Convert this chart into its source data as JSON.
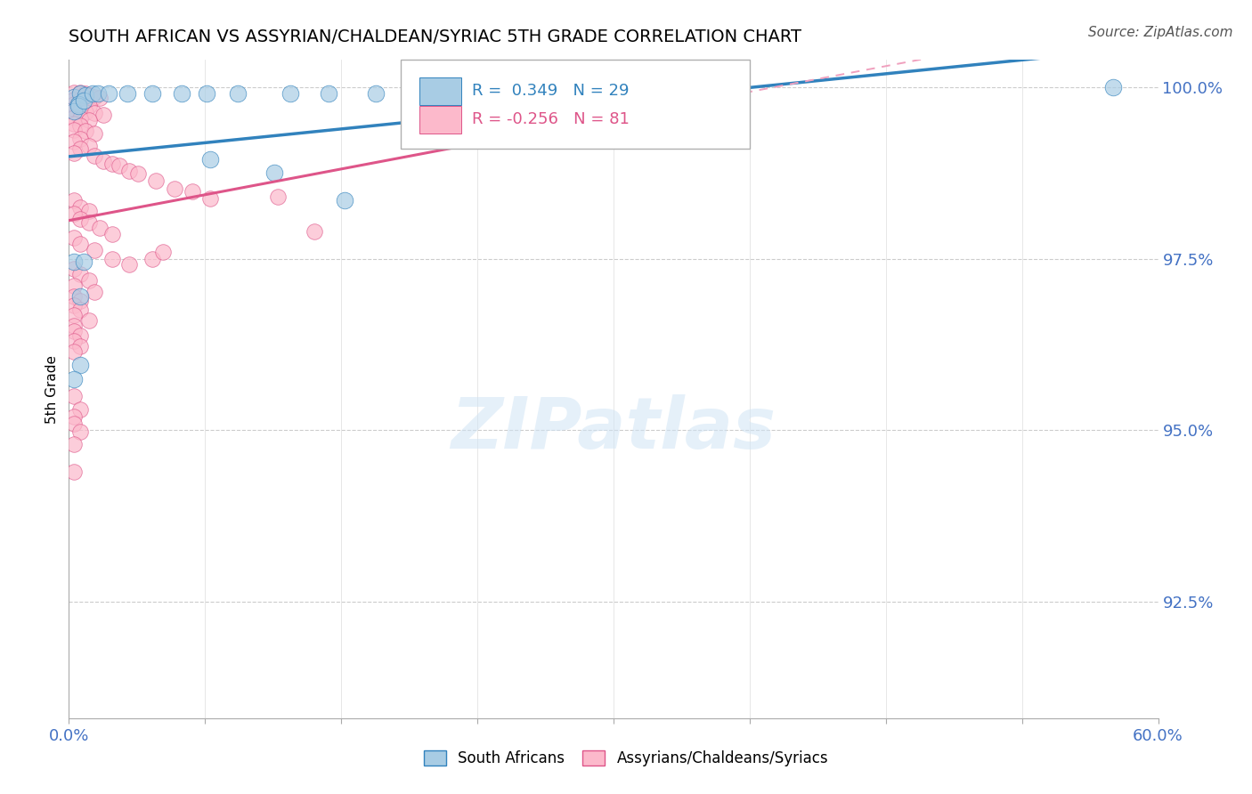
{
  "title": "SOUTH AFRICAN VS ASSYRIAN/CHALDEAN/SYRIAC 5TH GRADE CORRELATION CHART",
  "source": "Source: ZipAtlas.com",
  "ylabel": "5th Grade",
  "ytick_labels": [
    "100.0%",
    "97.5%",
    "95.0%",
    "92.5%"
  ],
  "ytick_values": [
    1.0,
    0.975,
    0.95,
    0.925
  ],
  "xlim": [
    0.0,
    0.6
  ],
  "ylim": [
    0.908,
    1.004
  ],
  "blue_R": "0.349",
  "blue_N": "29",
  "pink_R": "-0.256",
  "pink_N": "81",
  "legend_blue": "South Africans",
  "legend_pink": "Assyrians/Chaldeans/Syriacs",
  "blue_fill": "#a8cce4",
  "blue_edge": "#3182bd",
  "pink_fill": "#fcb9cb",
  "pink_edge": "#de5589",
  "blue_line_color": "#3182bd",
  "pink_line_solid_color": "#de5589",
  "pink_line_dash_color": "#f0a0be",
  "watermark_text": "ZIPatlas",
  "watermark_color": "#d0e4f5",
  "grid_h_color": "#cccccc",
  "grid_v_color": "#dddddd",
  "blue_scatter_x": [
    0.003,
    0.006,
    0.009,
    0.005,
    0.003,
    0.005,
    0.008,
    0.013,
    0.016,
    0.022,
    0.032,
    0.046,
    0.062,
    0.076,
    0.093,
    0.122,
    0.143,
    0.169,
    0.208,
    0.078,
    0.113,
    0.152,
    0.003,
    0.006,
    0.003,
    0.008,
    0.006,
    0.34,
    0.575
  ],
  "blue_scatter_y": [
    0.9985,
    0.999,
    0.9988,
    0.9975,
    0.9965,
    0.9972,
    0.998,
    0.999,
    0.999,
    0.999,
    0.999,
    0.999,
    0.999,
    0.999,
    0.999,
    0.999,
    0.999,
    0.999,
    0.999,
    0.9895,
    0.9875,
    0.9835,
    0.9745,
    0.9595,
    0.9575,
    0.9745,
    0.9695,
    0.999,
    1.0
  ],
  "pink_scatter_x": [
    0.003,
    0.006,
    0.009,
    0.011,
    0.014,
    0.017,
    0.003,
    0.006,
    0.009,
    0.003,
    0.006,
    0.011,
    0.003,
    0.006,
    0.009,
    0.014,
    0.019,
    0.003,
    0.006,
    0.011,
    0.003,
    0.006,
    0.003,
    0.009,
    0.014,
    0.006,
    0.003,
    0.011,
    0.006,
    0.003,
    0.014,
    0.019,
    0.024,
    0.028,
    0.033,
    0.038,
    0.048,
    0.058,
    0.068,
    0.078,
    0.003,
    0.006,
    0.011,
    0.003,
    0.006,
    0.011,
    0.017,
    0.024,
    0.003,
    0.006,
    0.014,
    0.024,
    0.033,
    0.003,
    0.006,
    0.011,
    0.003,
    0.014,
    0.003,
    0.006,
    0.003,
    0.006,
    0.003,
    0.011,
    0.003,
    0.003,
    0.006,
    0.003,
    0.006,
    0.003,
    0.115,
    0.135,
    0.046,
    0.052,
    0.003,
    0.006,
    0.003,
    0.003,
    0.006,
    0.003,
    0.003
  ],
  "pink_scatter_y": [
    0.9992,
    0.9992,
    0.999,
    0.9988,
    0.9986,
    0.9984,
    0.9982,
    0.9981,
    0.998,
    0.9975,
    0.9974,
    0.9972,
    0.9968,
    0.9966,
    0.9964,
    0.9962,
    0.996,
    0.9956,
    0.9954,
    0.9952,
    0.9946,
    0.9944,
    0.9938,
    0.9936,
    0.9932,
    0.9924,
    0.992,
    0.9914,
    0.991,
    0.9904,
    0.99,
    0.9892,
    0.9888,
    0.9886,
    0.9878,
    0.9874,
    0.9864,
    0.9852,
    0.9848,
    0.9838,
    0.9835,
    0.9825,
    0.982,
    0.9815,
    0.9808,
    0.9802,
    0.9795,
    0.9786,
    0.978,
    0.9772,
    0.9762,
    0.975,
    0.9742,
    0.9735,
    0.9728,
    0.9718,
    0.971,
    0.9702,
    0.9695,
    0.9688,
    0.9682,
    0.9675,
    0.9668,
    0.966,
    0.9652,
    0.9645,
    0.9638,
    0.963,
    0.9622,
    0.9614,
    0.984,
    0.979,
    0.975,
    0.976,
    0.955,
    0.953,
    0.952,
    0.951,
    0.9498,
    0.948,
    0.944
  ]
}
